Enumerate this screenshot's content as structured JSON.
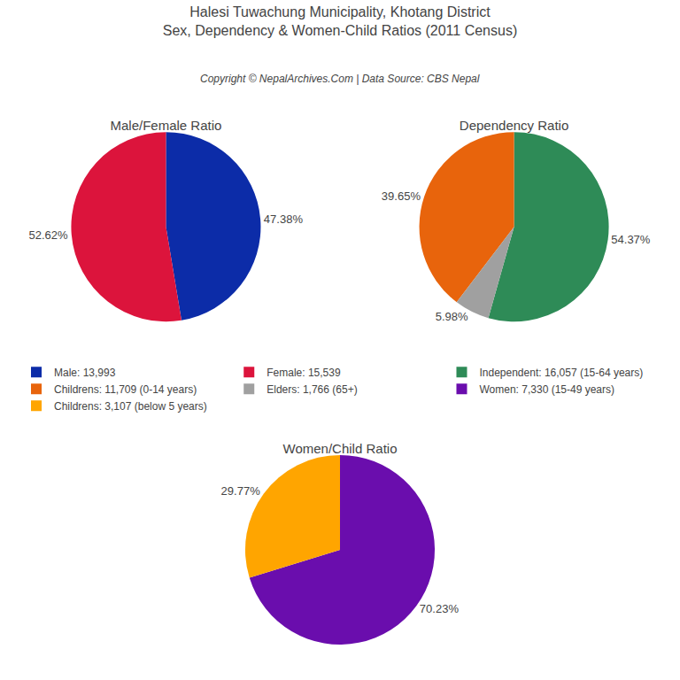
{
  "title": "Halesi Tuwachung Municipality, Khotang District",
  "subtitle": "Sex, Dependency & Women-Child Ratios (2011 Census)",
  "annotations": [
    "Copyright © NepalArchives.Com | Data Source: CBS Nepal"
  ],
  "legend": "center",
  "chart_data": [
    {
      "type": "pie",
      "title": "Male/Female Ratio",
      "categories": [
        "Male: 13,993",
        "Female: 15,539"
      ],
      "values": [
        47.38,
        52.62
      ],
      "value_labels": [
        "47.38%",
        "52.62%"
      ],
      "colors": [
        "#0c2ca8",
        "#dc143c"
      ],
      "data_labels": true
    },
    {
      "type": "pie",
      "title": "Dependency Ratio",
      "categories": [
        "Independent: 16,057 (15-64 years)",
        "Childrens: 11,709 (0-14 years)",
        "Elders: 1,766 (65+)"
      ],
      "values": [
        54.37,
        39.65,
        5.98
      ],
      "value_labels": [
        "54.37%",
        "39.65%",
        "5.98%"
      ],
      "colors": [
        "#2e8b57",
        "#e8640c",
        "#a0a0a0"
      ],
      "data_labels": true
    },
    {
      "type": "pie",
      "title": "Women/Child Ratio",
      "categories": [
        "Women: 7,330 (15-49 years)",
        "Childrens: 3,107 (below 5 years)"
      ],
      "values": [
        70.23,
        29.77
      ],
      "value_labels": [
        "70.23%",
        "29.77%"
      ],
      "colors": [
        "#6a0dad",
        "#ffa500"
      ],
      "data_labels": true
    }
  ]
}
